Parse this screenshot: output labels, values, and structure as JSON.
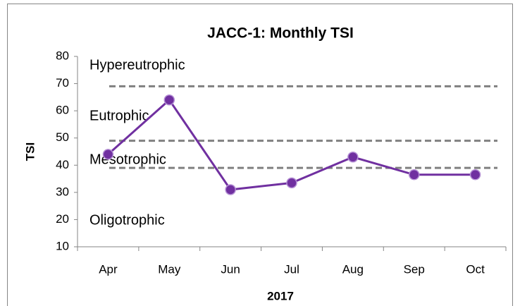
{
  "chart_data": {
    "type": "line",
    "title": "JACC-1: Monthly TSI",
    "x_label": "2017",
    "y_label": "TSI",
    "categories": [
      "Apr",
      "May",
      "Jun",
      "Jul",
      "Aug",
      "Sep",
      "Oct"
    ],
    "series": [
      {
        "name": "TSI",
        "color": "#7030a0",
        "values": [
          44,
          64,
          31,
          33.5,
          43,
          36.5,
          36.5
        ]
      }
    ],
    "thresholds": [
      69,
      49,
      39
    ],
    "annotations": [
      "Hypereutrophic",
      "Eutrophic",
      "Mesotrophic",
      "Oligotrophic"
    ],
    "ylim": [
      10,
      80
    ],
    "yticks": [
      10,
      20,
      30,
      40,
      50,
      60,
      70,
      80
    ]
  }
}
